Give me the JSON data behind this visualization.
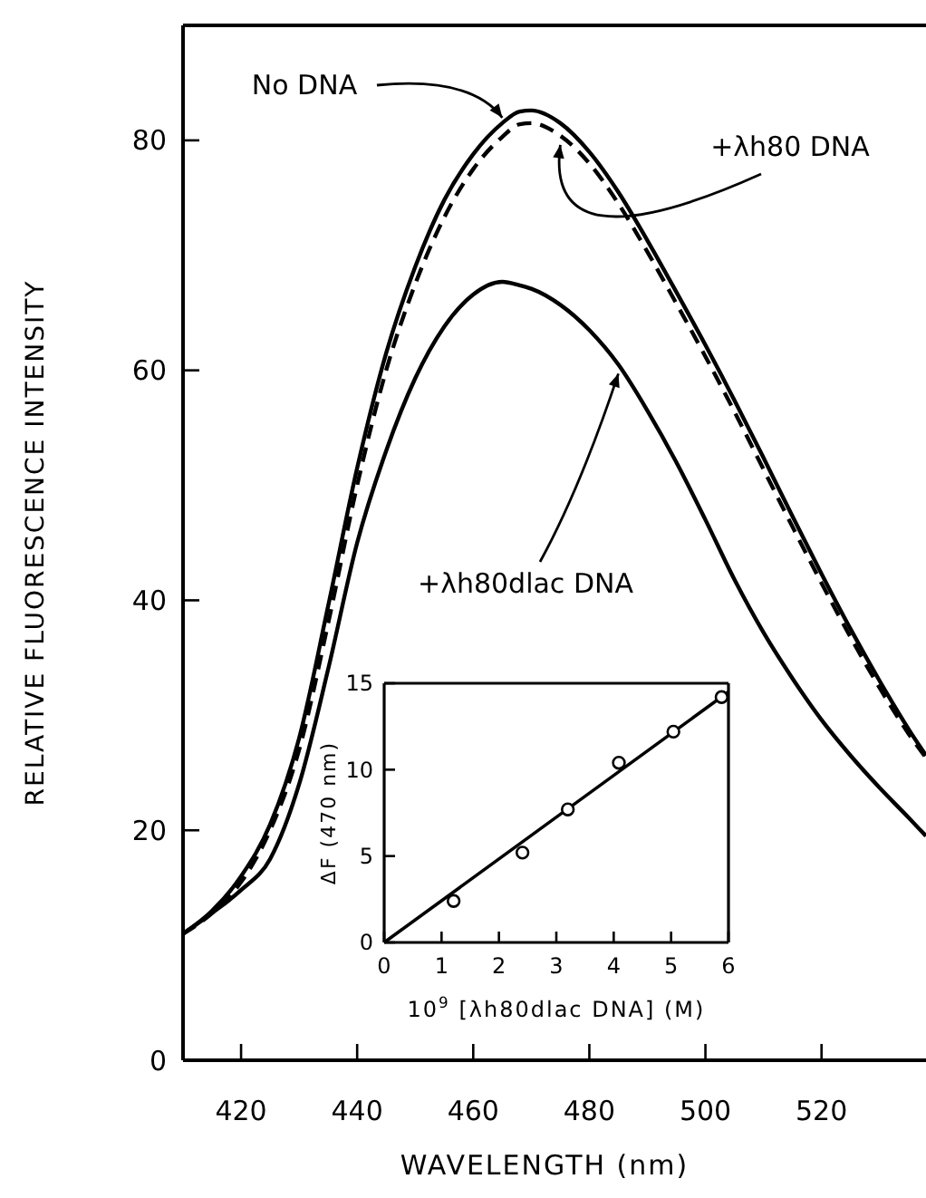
{
  "chart_data": [
    {
      "type": "line",
      "xlabel": "WAVELENGTH (nm)",
      "ylabel": "RELATIVE FLUORESCENCE INTENSITY",
      "x": [
        410,
        415,
        420,
        425,
        430,
        435,
        440,
        445,
        450,
        455,
        460,
        465,
        468,
        470,
        475,
        480,
        485,
        490,
        495,
        500,
        505,
        510,
        515,
        520,
        525,
        530,
        535,
        538
      ],
      "xlim": [
        410,
        538
      ],
      "ylim": [
        0,
        90
      ],
      "xticks": [
        420,
        440,
        460,
        480,
        500,
        520
      ],
      "yticks": [
        0,
        20,
        40,
        60,
        80
      ],
      "grid": false,
      "marker": "none",
      "legend": false,
      "annotations": [
        {
          "text": "No DNA",
          "x": 465,
          "y": 81.5
        },
        {
          "text": "+λh80 DNA",
          "x": 475,
          "y": 80.4
        },
        {
          "text": "+λh80dlac DNA",
          "x": 485,
          "y": 60.5
        }
      ],
      "series": [
        {
          "color": "#000000",
          "line_style": "solid",
          "values": [
            11,
            13,
            16,
            20.5,
            28,
            39.5,
            51.5,
            61.5,
            69,
            74.8,
            78.8,
            81.5,
            82.5,
            82.6,
            81.5,
            79,
            75.5,
            71.3,
            66.8,
            62.2,
            57.4,
            52.4,
            47.3,
            42.3,
            37.5,
            33,
            28.8,
            26.5
          ]
        },
        {
          "color": "#000000",
          "line_style": "dashed",
          "values": [
            11,
            12.8,
            15.5,
            20,
            27,
            38,
            50,
            60,
            67.5,
            73.3,
            77.5,
            80.3,
            81.4,
            81.5,
            80.4,
            78,
            74.5,
            70.3,
            65.8,
            61.2,
            56.4,
            51.4,
            46.4,
            41.5,
            36.8,
            32.4,
            28.4,
            26.3
          ]
        },
        {
          "color": "#000000",
          "line_style": "solid",
          "values": [
            11,
            12.8,
            14.8,
            17.5,
            24,
            34,
            45,
            53,
            59.3,
            63.8,
            66.6,
            67.7,
            67.4,
            67.1,
            65.7,
            63.5,
            60.5,
            56.5,
            52,
            47,
            41.8,
            37.2,
            33.2,
            29.6,
            26.5,
            23.7,
            21.1,
            19.5
          ]
        }
      ]
    },
    {
      "type": "scatter",
      "xlabel": "10$^{9}$ [λh80dlac DNA] (M)",
      "ylabel": "ΔF (470 nm)",
      "xlim": [
        0,
        6
      ],
      "ylim": [
        0,
        15
      ],
      "xticks": [
        0,
        1,
        2,
        3,
        4,
        5,
        6
      ],
      "yticks": [
        0,
        5,
        10,
        15
      ],
      "grid": false,
      "marker": "circle",
      "series": [
        {
          "color": "#000000",
          "x": [
            1.21,
            2.41,
            3.2,
            4.09,
            5.04,
            5.88
          ],
          "values": [
            2.4,
            5.2,
            7.7,
            10.4,
            12.2,
            14.2
          ]
        },
        {
          "type": "line",
          "color": "#000000",
          "marker": "none",
          "x": [
            0,
            6
          ],
          "values": [
            0,
            14.5
          ]
        }
      ]
    }
  ]
}
